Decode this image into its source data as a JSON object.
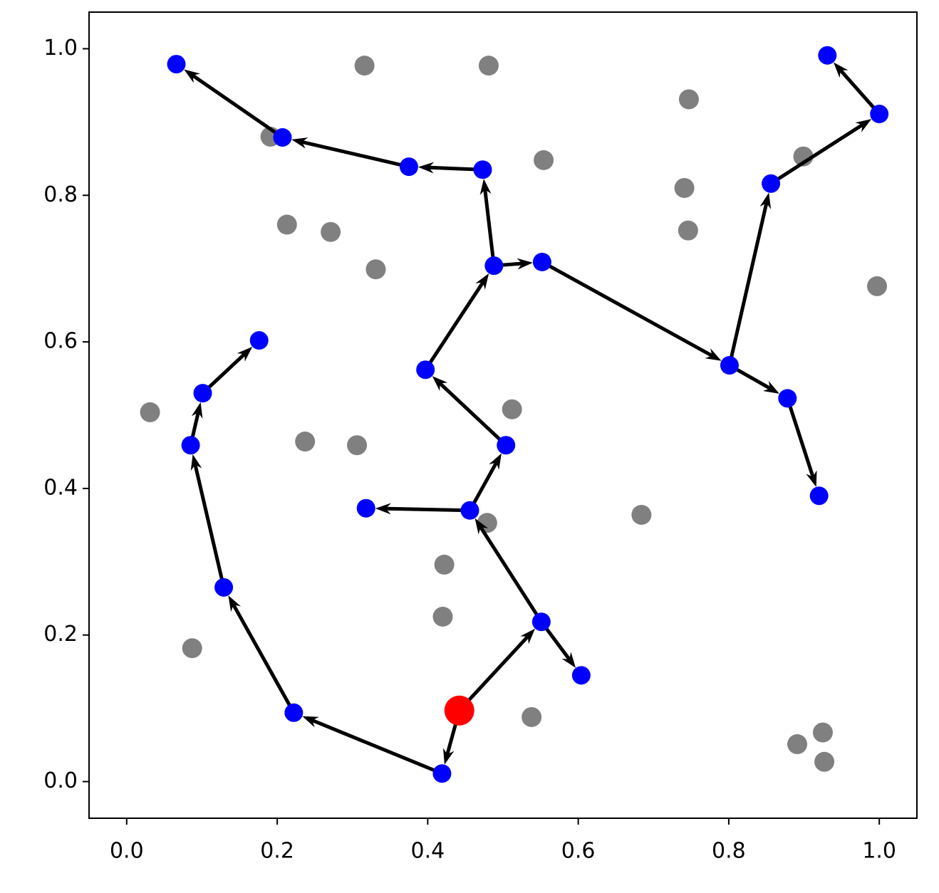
{
  "chart_data": {
    "type": "scatter",
    "xlim": [
      -0.05,
      1.05
    ],
    "ylim": [
      -0.05,
      1.05
    ],
    "xticks": [
      {
        "value": 0,
        "label": "0.0"
      },
      {
        "value": 0.2,
        "label": "0.2"
      },
      {
        "value": 0.4,
        "label": "0.4"
      },
      {
        "value": 0.6,
        "label": "0.6"
      },
      {
        "value": 0.8,
        "label": "0.8"
      },
      {
        "value": 1,
        "label": "1.0"
      }
    ],
    "yticks": [
      {
        "value": 0,
        "label": "0.0"
      },
      {
        "value": 0.2,
        "label": "0.2"
      },
      {
        "value": 0.4,
        "label": "0.4"
      },
      {
        "value": 0.6,
        "label": "0.6"
      },
      {
        "value": 0.8,
        "label": "0.8"
      },
      {
        "value": 1,
        "label": "1.0"
      }
    ],
    "points": {
      "color": "#808080",
      "x": [
        0.316,
        0.481,
        0.747,
        0.554,
        0.191,
        0.899,
        0.741,
        0.746,
        0.213,
        0.271,
        0.331,
        0.997,
        0.031,
        0.237,
        0.306,
        0.512,
        0.479,
        0.684,
        0.422,
        0.42,
        0.087,
        0.538,
        0.891,
        0.925,
        0.927
      ],
      "y": [
        0.977,
        0.977,
        0.931,
        0.848,
        0.88,
        0.853,
        0.81,
        0.752,
        0.76,
        0.75,
        0.699,
        0.676,
        0.504,
        0.464,
        0.459,
        0.508,
        0.353,
        0.364,
        0.296,
        0.225,
        0.182,
        0.088,
        0.051,
        0.067,
        0.027
      ]
    },
    "nodes": {
      "color": "#0000ff",
      "root": 0,
      "root_color": "#ff0000",
      "x": [
        0.442,
        0.419,
        0.222,
        0.129,
        0.085,
        0.101,
        0.176,
        0.551,
        0.604,
        0.456,
        0.318,
        0.504,
        0.397,
        0.488,
        0.552,
        0.473,
        0.375,
        0.207,
        0.066,
        0.801,
        0.878,
        0.92,
        0.856,
        1.0,
        0.931
      ],
      "y": [
        0.097,
        0.011,
        0.094,
        0.265,
        0.459,
        0.53,
        0.602,
        0.218,
        0.145,
        0.37,
        0.373,
        0.459,
        0.562,
        0.704,
        0.709,
        0.835,
        0.839,
        0.879,
        0.979,
        0.568,
        0.523,
        0.39,
        0.816,
        0.911,
        0.991
      ]
    },
    "edges": [
      [
        0,
        1
      ],
      [
        1,
        2
      ],
      [
        2,
        3
      ],
      [
        3,
        4
      ],
      [
        4,
        5
      ],
      [
        5,
        6
      ],
      [
        0,
        7
      ],
      [
        7,
        8
      ],
      [
        7,
        9
      ],
      [
        9,
        10
      ],
      [
        9,
        11
      ],
      [
        11,
        12
      ],
      [
        12,
        13
      ],
      [
        13,
        14
      ],
      [
        13,
        15
      ],
      [
        15,
        16
      ],
      [
        16,
        17
      ],
      [
        17,
        18
      ],
      [
        14,
        19
      ],
      [
        19,
        20
      ],
      [
        20,
        21
      ],
      [
        19,
        22
      ],
      [
        22,
        23
      ],
      [
        23,
        24
      ]
    ],
    "edge_color": "#000000"
  }
}
